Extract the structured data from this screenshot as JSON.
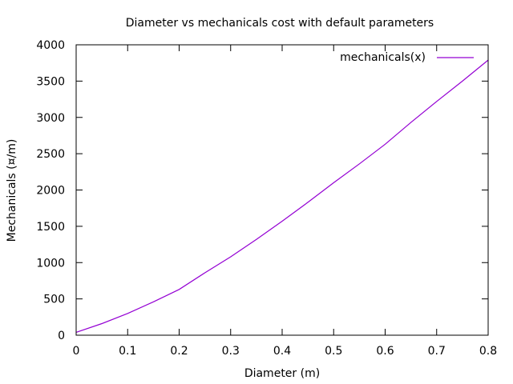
{
  "chart_data": {
    "type": "line",
    "title": "Diameter vs mechanicals cost with default parameters",
    "xlabel": "Diameter (m)",
    "ylabel": "Mechanicals (¤/m)",
    "xlim": [
      0,
      0.8
    ],
    "ylim": [
      0,
      4000
    ],
    "x_ticks": [
      "0",
      "0.1",
      "0.2",
      "0.3",
      "0.4",
      "0.5",
      "0.6",
      "0.7",
      "0.8"
    ],
    "y_ticks": [
      "0",
      "500",
      "1000",
      "1500",
      "2000",
      "2500",
      "3000",
      "3500",
      "4000"
    ],
    "grid": false,
    "legend_position": "top-right",
    "series": [
      {
        "name": "mechanicals(x)",
        "color": "#9400d3",
        "x": [
          0,
          0.05,
          0.1,
          0.15,
          0.2,
          0.25,
          0.3,
          0.35,
          0.4,
          0.45,
          0.5,
          0.55,
          0.6,
          0.65,
          0.7,
          0.75,
          0.8
        ],
        "y": [
          40,
          160,
          300,
          460,
          630,
          860,
          1080,
          1320,
          1570,
          1830,
          2100,
          2360,
          2630,
          2930,
          3220,
          3500,
          3790
        ]
      }
    ]
  }
}
